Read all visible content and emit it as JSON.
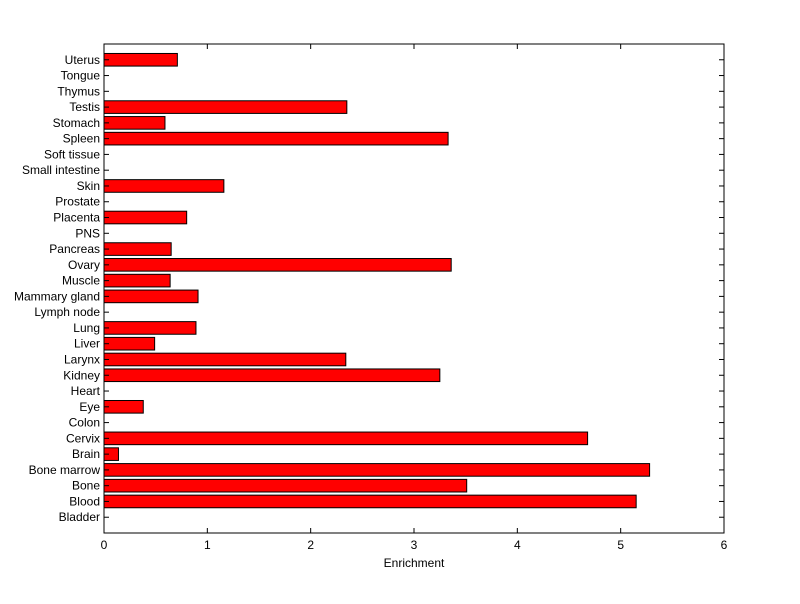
{
  "chart_data": {
    "type": "bar",
    "orientation": "horizontal",
    "title": "",
    "xlabel": "Enrichment",
    "ylabel": "",
    "xlim": [
      0,
      6
    ],
    "xticks": [
      "0",
      "1",
      "2",
      "3",
      "4",
      "5",
      "6"
    ],
    "grid": false,
    "legend": "none",
    "bar_color": "#ff0000",
    "categories": [
      "Uterus",
      "Tongue",
      "Thymus",
      "Testis",
      "Stomach",
      "Spleen",
      "Soft tissue",
      "Small intestine",
      "Skin",
      "Prostate",
      "Placenta",
      "PNS",
      "Pancreas",
      "Ovary",
      "Muscle",
      "Mammary gland",
      "Lymph node",
      "Lung",
      "Liver",
      "Larynx",
      "Kidney",
      "Heart",
      "Eye",
      "Colon",
      "Cervix",
      "Brain",
      "Bone marrow",
      "Bone",
      "Blood",
      "Bladder"
    ],
    "values": [
      0.71,
      0,
      0,
      2.35,
      0.59,
      3.33,
      0,
      0,
      1.16,
      0,
      0.8,
      0,
      0.65,
      3.36,
      0.64,
      0.91,
      0,
      0.89,
      0.49,
      2.34,
      3.25,
      0,
      0.38,
      0,
      4.68,
      0.14,
      5.28,
      3.51,
      5.15,
      0
    ]
  }
}
